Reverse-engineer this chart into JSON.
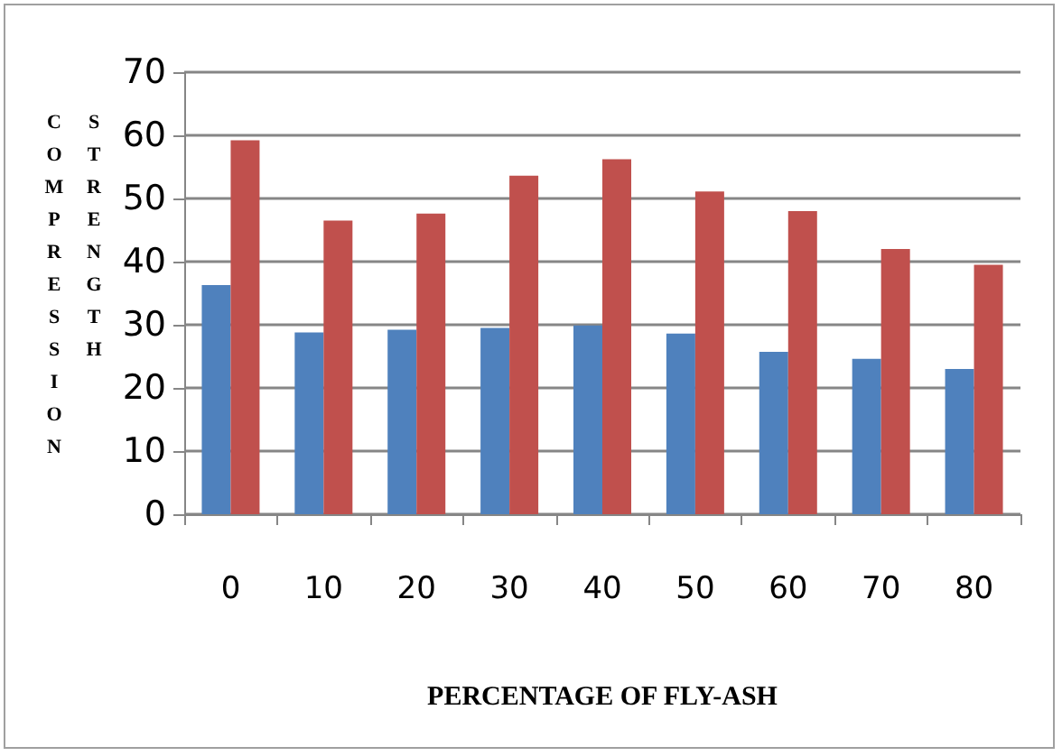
{
  "chart_data": {
    "type": "bar",
    "xlabel": "PERCENTAGE OF FLY-ASH",
    "ylabel": "COMPRESSION STRENGTH",
    "categories": [
      "0",
      "10",
      "20",
      "30",
      "40",
      "50",
      "60",
      "70",
      "80"
    ],
    "series": [
      {
        "color": "#4f81bd",
        "values": [
          36.3,
          28.8,
          29.2,
          29.5,
          29.9,
          28.6,
          25.7,
          24.6,
          23.0
        ]
      },
      {
        "color": "#c0504d",
        "values": [
          59.2,
          46.5,
          47.6,
          53.6,
          56.2,
          51.1,
          48.0,
          42.0,
          39.5
        ]
      }
    ],
    "ylim": [
      0,
      70
    ],
    "yticks": [
      0,
      10,
      20,
      30,
      40,
      50,
      60,
      70
    ],
    "grid": "y"
  }
}
